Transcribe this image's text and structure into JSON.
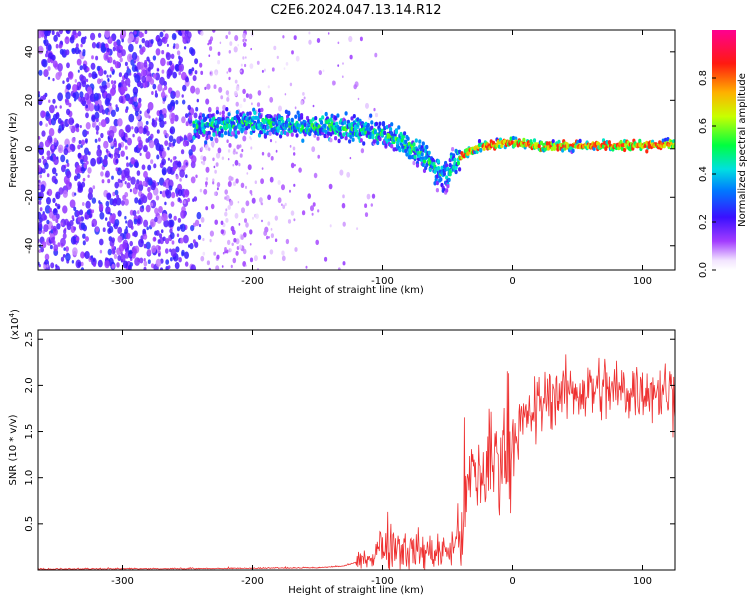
{
  "page_title": "C2E6.2024.047.13.14.R12",
  "chart_data": [
    {
      "type": "heatmap",
      "xlabel": "Height of straight line (km)",
      "ylabel": "Frequency (Hz)",
      "xlim": [
        -365,
        125
      ],
      "ylim": [
        -50,
        49
      ],
      "xticks": [
        -300,
        -200,
        -100,
        0,
        100
      ],
      "yticks": [
        -40,
        -20,
        0,
        20,
        40
      ],
      "colorbar": {
        "label": "Normalized spectral amplitude",
        "range": [
          0,
          1
        ],
        "ticks": [
          0.0,
          0.2,
          0.4,
          0.6,
          0.8
        ],
        "tick_labels": [
          "0.0",
          "0.2",
          "0.4",
          "0.6",
          "0.8"
        ],
        "colormap": "rainbow (white - violet - blue - cyan - green - yellow - red - magenta)"
      },
      "dominant_ridge": {
        "x": [
          -240,
          -220,
          -200,
          -180,
          -160,
          -140,
          -120,
          -100,
          -85,
          -70,
          -60,
          -52,
          -45,
          -40,
          -30,
          -20,
          -10,
          0,
          10,
          20,
          40,
          60,
          80,
          100,
          125
        ],
        "frequency": [
          9,
          10,
          11,
          10,
          9,
          9,
          8,
          6,
          3,
          -2,
          -8,
          -12,
          -6,
          -3,
          0,
          1,
          2,
          3,
          2,
          1,
          1,
          1.5,
          1.5,
          1.5,
          2
        ]
      },
      "grid": false
    },
    {
      "type": "line",
      "xlabel": "Height of straight line (km)",
      "ylabel": "SNR (10 * v/v)",
      "y_multiplier": "(x10",
      "y_multiplier_exp": "4",
      "y_multiplier_close": ")",
      "xlim": [
        -365,
        125
      ],
      "ylim": [
        0,
        2.6
      ],
      "xticks": [
        -300,
        -200,
        -100,
        0,
        100
      ],
      "yticks": [
        0.5,
        1.0,
        1.5,
        2.0,
        2.5
      ],
      "ytick_labels": [
        "0.5",
        "1.0",
        "1.5",
        "2.0",
        "2.5"
      ],
      "series": [
        {
          "color": "#ee3030",
          "x": [
            -365,
            -300,
            -250,
            -200,
            -150,
            -130,
            -115,
            -105,
            -100,
            -95,
            -90,
            -80,
            -70,
            -60,
            -50,
            -45,
            -40,
            -35,
            -30,
            -25,
            -20,
            -15,
            -10,
            -5,
            0,
            5,
            10,
            15,
            20,
            25,
            30,
            40,
            50,
            60,
            70,
            80,
            90,
            100,
            110,
            120,
            125
          ],
          "y": [
            0.005,
            0.008,
            0.01,
            0.015,
            0.02,
            0.04,
            0.1,
            0.2,
            0.28,
            0.3,
            0.28,
            0.22,
            0.2,
            0.19,
            0.2,
            0.25,
            0.45,
            0.8,
            1.05,
            1.0,
            1.1,
            1.2,
            1.25,
            1.35,
            1.45,
            1.55,
            1.6,
            1.7,
            1.75,
            1.85,
            1.9,
            1.92,
            1.95,
            1.95,
            1.97,
            1.93,
            1.95,
            1.97,
            1.95,
            1.93,
            1.9
          ]
        }
      ],
      "grid": false
    }
  ]
}
